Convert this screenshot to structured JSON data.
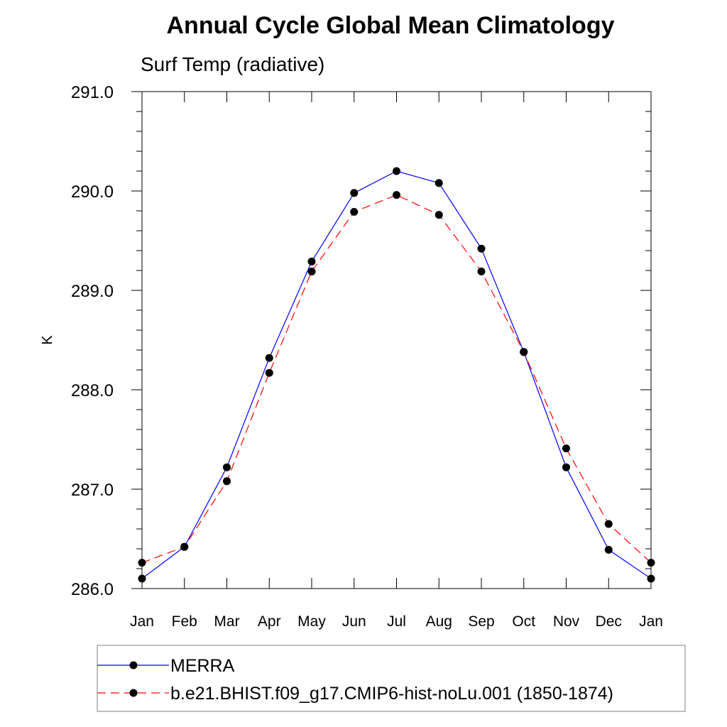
{
  "chart_data": {
    "type": "line",
    "title": "Annual Cycle Global Mean Climatology",
    "subtitle": "Surf Temp (radiative)",
    "ylabel": "K",
    "xlabel": "",
    "categories": [
      "Jan",
      "Feb",
      "Mar",
      "Apr",
      "May",
      "Jun",
      "Jul",
      "Aug",
      "Sep",
      "Oct",
      "Nov",
      "Dec",
      "Jan"
    ],
    "ylim": [
      286.0,
      291.0
    ],
    "yticks": [
      "286.0",
      "287.0",
      "288.0",
      "289.0",
      "290.0",
      "291.0"
    ],
    "series": [
      {
        "name": "MERRA",
        "color": "#0000ff",
        "style": "solid",
        "marker": "filled-circle",
        "values": [
          286.1,
          286.42,
          287.22,
          288.32,
          289.29,
          289.98,
          290.2,
          290.08,
          289.42,
          288.38,
          287.22,
          286.39,
          286.1
        ]
      },
      {
        "name": "b.e21.BHIST.f09_g17.CMIP6-hist-noLu.001 (1850-1874)",
        "color": "#ff0000",
        "style": "dashed",
        "marker": "filled-circle",
        "values": [
          286.26,
          286.42,
          287.08,
          288.17,
          289.19,
          289.79,
          289.96,
          289.76,
          289.19,
          288.38,
          287.41,
          286.65,
          286.26
        ]
      }
    ],
    "legend_position": "bottom",
    "grid": false
  }
}
